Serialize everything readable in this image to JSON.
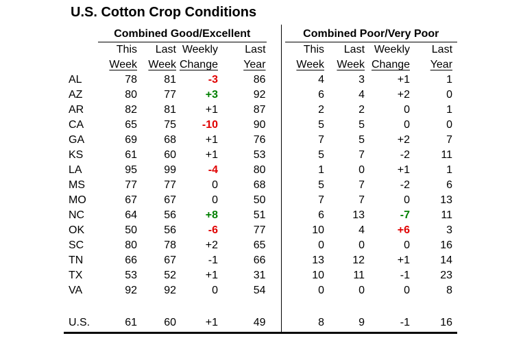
{
  "title": "U.S. Cotton Crop Conditions",
  "colors": {
    "negative_highlight": "#e00000",
    "positive_highlight": "#008000",
    "text": "#000000",
    "rule_lines": "#000000"
  },
  "chart_data": {
    "type": "table",
    "title": "U.S. Cotton Crop Conditions",
    "groups": [
      {
        "label": "Combined Good/Excellent"
      },
      {
        "label": "Combined Poor/Very Poor"
      }
    ],
    "columns_line1": [
      "This",
      "Last",
      "Weekly",
      "Last"
    ],
    "columns_line2": [
      "Week",
      "Week",
      "Change",
      "Year"
    ],
    "rows": [
      {
        "state": "AL",
        "good_excellent": {
          "this_week": "78",
          "last_week": "81",
          "weekly_change": "-3",
          "change_highlight": "red",
          "last_year": "86"
        },
        "poor_very_poor": {
          "this_week": "4",
          "last_week": "3",
          "weekly_change": "+1",
          "change_highlight": "none",
          "last_year": "1"
        }
      },
      {
        "state": "AZ",
        "good_excellent": {
          "this_week": "80",
          "last_week": "77",
          "weekly_change": "+3",
          "change_highlight": "green",
          "last_year": "92"
        },
        "poor_very_poor": {
          "this_week": "6",
          "last_week": "4",
          "weekly_change": "+2",
          "change_highlight": "none",
          "last_year": "0"
        }
      },
      {
        "state": "AR",
        "good_excellent": {
          "this_week": "82",
          "last_week": "81",
          "weekly_change": "+1",
          "change_highlight": "none",
          "last_year": "87"
        },
        "poor_very_poor": {
          "this_week": "2",
          "last_week": "2",
          "weekly_change": "0",
          "change_highlight": "none",
          "last_year": "1"
        }
      },
      {
        "state": "CA",
        "good_excellent": {
          "this_week": "65",
          "last_week": "75",
          "weekly_change": "-10",
          "change_highlight": "red",
          "last_year": "90"
        },
        "poor_very_poor": {
          "this_week": "5",
          "last_week": "5",
          "weekly_change": "0",
          "change_highlight": "none",
          "last_year": "0"
        }
      },
      {
        "state": "GA",
        "good_excellent": {
          "this_week": "69",
          "last_week": "68",
          "weekly_change": "+1",
          "change_highlight": "none",
          "last_year": "76"
        },
        "poor_very_poor": {
          "this_week": "7",
          "last_week": "5",
          "weekly_change": "+2",
          "change_highlight": "none",
          "last_year": "7"
        }
      },
      {
        "state": "KS",
        "good_excellent": {
          "this_week": "61",
          "last_week": "60",
          "weekly_change": "+1",
          "change_highlight": "none",
          "last_year": "53"
        },
        "poor_very_poor": {
          "this_week": "5",
          "last_week": "7",
          "weekly_change": "-2",
          "change_highlight": "none",
          "last_year": "11"
        }
      },
      {
        "state": "LA",
        "good_excellent": {
          "this_week": "95",
          "last_week": "99",
          "weekly_change": "-4",
          "change_highlight": "red",
          "last_year": "80"
        },
        "poor_very_poor": {
          "this_week": "1",
          "last_week": "0",
          "weekly_change": "+1",
          "change_highlight": "none",
          "last_year": "1"
        }
      },
      {
        "state": "MS",
        "good_excellent": {
          "this_week": "77",
          "last_week": "77",
          "weekly_change": "0",
          "change_highlight": "none",
          "last_year": "68"
        },
        "poor_very_poor": {
          "this_week": "5",
          "last_week": "7",
          "weekly_change": "-2",
          "change_highlight": "none",
          "last_year": "6"
        }
      },
      {
        "state": "MO",
        "good_excellent": {
          "this_week": "67",
          "last_week": "67",
          "weekly_change": "0",
          "change_highlight": "none",
          "last_year": "50"
        },
        "poor_very_poor": {
          "this_week": "7",
          "last_week": "7",
          "weekly_change": "0",
          "change_highlight": "none",
          "last_year": "13"
        }
      },
      {
        "state": "NC",
        "good_excellent": {
          "this_week": "64",
          "last_week": "56",
          "weekly_change": "+8",
          "change_highlight": "green",
          "last_year": "51"
        },
        "poor_very_poor": {
          "this_week": "6",
          "last_week": "13",
          "weekly_change": "-7",
          "change_highlight": "green",
          "last_year": "11"
        }
      },
      {
        "state": "OK",
        "good_excellent": {
          "this_week": "50",
          "last_week": "56",
          "weekly_change": "-6",
          "change_highlight": "red",
          "last_year": "77"
        },
        "poor_very_poor": {
          "this_week": "10",
          "last_week": "4",
          "weekly_change": "+6",
          "change_highlight": "red",
          "last_year": "3"
        }
      },
      {
        "state": "SC",
        "good_excellent": {
          "this_week": "80",
          "last_week": "78",
          "weekly_change": "+2",
          "change_highlight": "none",
          "last_year": "65"
        },
        "poor_very_poor": {
          "this_week": "0",
          "last_week": "0",
          "weekly_change": "0",
          "change_highlight": "none",
          "last_year": "16"
        }
      },
      {
        "state": "TN",
        "good_excellent": {
          "this_week": "66",
          "last_week": "67",
          "weekly_change": "-1",
          "change_highlight": "none",
          "last_year": "66"
        },
        "poor_very_poor": {
          "this_week": "13",
          "last_week": "12",
          "weekly_change": "+1",
          "change_highlight": "none",
          "last_year": "14"
        }
      },
      {
        "state": "TX",
        "good_excellent": {
          "this_week": "53",
          "last_week": "52",
          "weekly_change": "+1",
          "change_highlight": "none",
          "last_year": "31"
        },
        "poor_very_poor": {
          "this_week": "10",
          "last_week": "11",
          "weekly_change": "-1",
          "change_highlight": "none",
          "last_year": "23"
        }
      },
      {
        "state": "VA",
        "good_excellent": {
          "this_week": "92",
          "last_week": "92",
          "weekly_change": "0",
          "change_highlight": "none",
          "last_year": "54"
        },
        "poor_very_poor": {
          "this_week": "0",
          "last_week": "0",
          "weekly_change": "0",
          "change_highlight": "none",
          "last_year": "8"
        }
      }
    ],
    "totals": {
      "state": "U.S.",
      "good_excellent": {
        "this_week": "61",
        "last_week": "60",
        "weekly_change": "+1",
        "change_highlight": "none",
        "last_year": "49"
      },
      "poor_very_poor": {
        "this_week": "8",
        "last_week": "9",
        "weekly_change": "-1",
        "change_highlight": "none",
        "last_year": "16"
      }
    }
  }
}
